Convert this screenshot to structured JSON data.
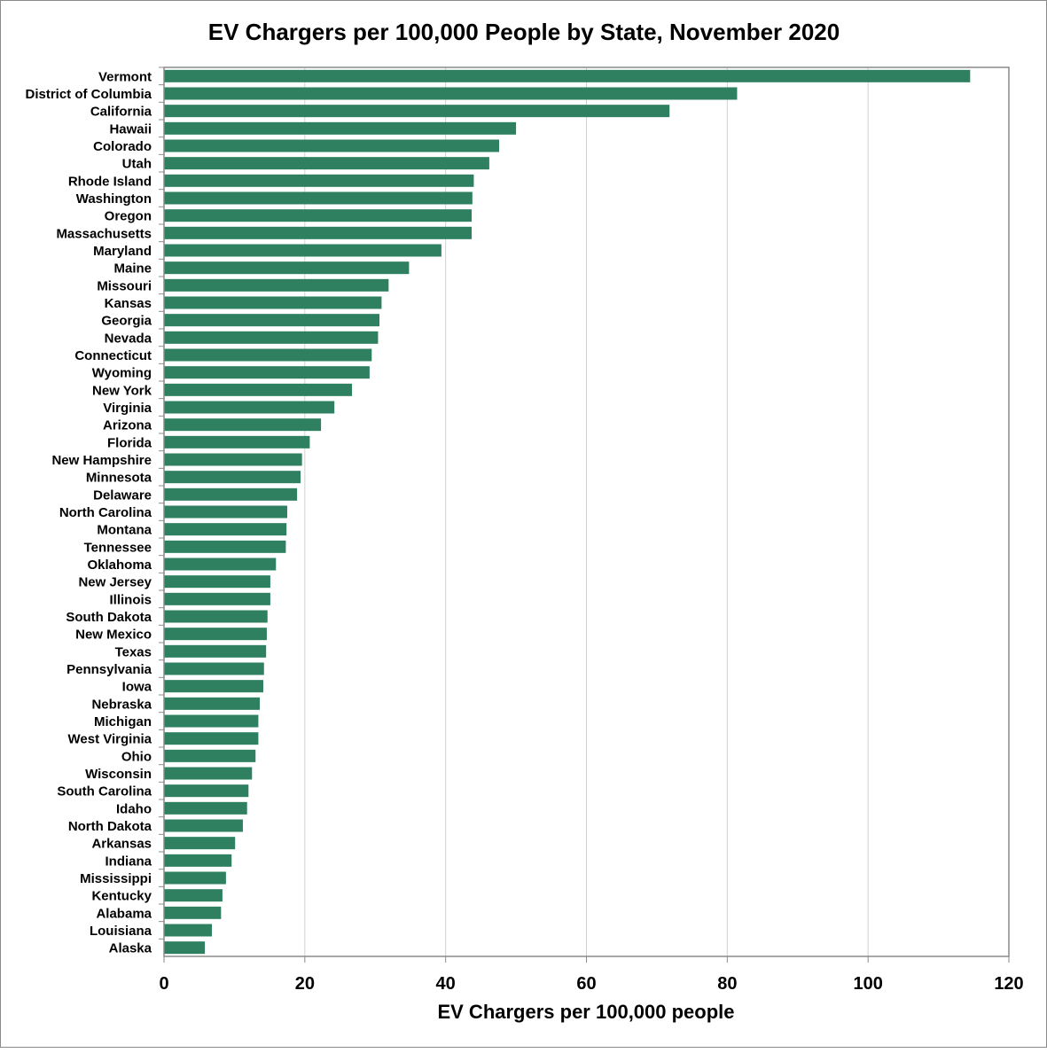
{
  "chart_data": {
    "type": "bar",
    "orientation": "horizontal",
    "title": "EV Chargers per 100,000 People by State, November 2020",
    "xlabel": "EV Chargers per 100,000 people",
    "ylabel": "",
    "xlim": [
      0,
      120
    ],
    "xticks": [
      0,
      20,
      40,
      60,
      80,
      100,
      120
    ],
    "grid": "vertical",
    "bar_color": "#2e8060",
    "categories": [
      "Vermont",
      "District of Columbia",
      "California",
      "Hawaii",
      "Colorado",
      "Utah",
      "Rhode Island",
      "Washington",
      "Oregon",
      "Massachusetts",
      "Maryland",
      "Maine",
      "Missouri",
      "Kansas",
      "Georgia",
      "Nevada",
      "Connecticut",
      "Wyoming",
      "New York",
      "Virginia",
      "Arizona",
      "Florida",
      "New Hampshire",
      "Minnesota",
      "Delaware",
      "North Carolina",
      "Montana",
      "Tennessee",
      "Oklahoma",
      "New Jersey",
      "Illinois",
      "South Dakota",
      "New Mexico",
      "Texas",
      "Pennsylvania",
      "Iowa",
      "Nebraska",
      "Michigan",
      "West Virginia",
      "Ohio",
      "Wisconsin",
      "South Carolina",
      "Idaho",
      "North Dakota",
      "Arkansas",
      "Indiana",
      "Mississippi",
      "Kentucky",
      "Alabama",
      "Louisiana",
      "Alaska"
    ],
    "values": [
      114.5,
      81.4,
      71.8,
      50.0,
      47.6,
      46.2,
      44.0,
      43.8,
      43.7,
      43.7,
      39.4,
      34.8,
      31.9,
      30.9,
      30.6,
      30.4,
      29.5,
      29.2,
      26.7,
      24.2,
      22.3,
      20.7,
      19.6,
      19.4,
      18.9,
      17.5,
      17.4,
      17.3,
      15.9,
      15.1,
      15.1,
      14.7,
      14.6,
      14.5,
      14.2,
      14.1,
      13.6,
      13.4,
      13.4,
      13.0,
      12.5,
      12.0,
      11.8,
      11.2,
      10.1,
      9.6,
      8.8,
      8.3,
      8.1,
      6.8,
      5.8
    ]
  }
}
